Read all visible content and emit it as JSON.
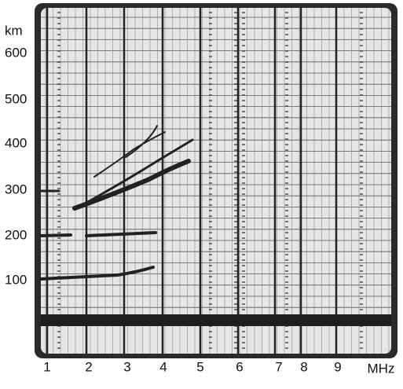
{
  "y_axis": {
    "unit": "km",
    "labels": [
      "600",
      "500",
      "400",
      "300",
      "200",
      "100"
    ]
  },
  "x_axis": {
    "labels": [
      "1",
      "2",
      "3",
      "4",
      "5",
      "6",
      "7",
      "8",
      "9"
    ],
    "unit": "MHz"
  }
}
